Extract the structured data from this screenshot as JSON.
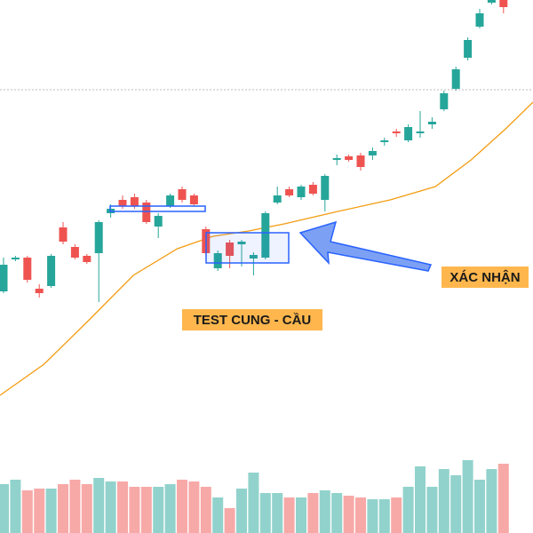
{
  "chart_data": {
    "type": "candlestick",
    "annotations": [
      "TEST CUNG - CẦU",
      "XÁC NHẬN"
    ],
    "open": [
      272,
      308,
      310,
      275,
      278,
      344,
      322,
      312,
      315,
      360,
      375,
      378,
      372,
      345,
      368,
      387,
      380,
      342,
      298,
      327,
      325,
      309,
      310,
      372,
      387,
      378,
      392,
      375,
      420,
      424,
      425,
      425,
      440,
      452,
      442,
      450,
      460,
      477,
      500,
      535,
      570,
      597,
      600
    ],
    "high": [
      310,
      312,
      312,
      280,
      314,
      350,
      325,
      314,
      352,
      370,
      380,
      382,
      375,
      360,
      382,
      390,
      382,
      345,
      318,
      330,
      330,
      316,
      362,
      390,
      390,
      392,
      395,
      404,
      426,
      426,
      428,
      434,
      445,
      455,
      460,
      475,
      468,
      498,
      525,
      558,
      590,
      600,
      600
    ],
    "low": [
      270,
      306,
      282,
      265,
      276,
      325,
      308,
      303,
      260,
      355,
      365,
      365,
      348,
      332,
      366,
      372,
      368,
      312,
      295,
      298,
      300,
      290,
      308,
      370,
      378,
      375,
      380,
      362,
      414,
      418,
      408,
      420,
      436,
      446,
      440,
      445,
      455,
      475,
      498,
      532,
      568,
      595,
      585
    ],
    "close": [
      302,
      310,
      285,
      270,
      312,
      328,
      310,
      305,
      350,
      365,
      368,
      368,
      350,
      357,
      380,
      375,
      370,
      315,
      315,
      312,
      328,
      313,
      360,
      380,
      380,
      390,
      382,
      402,
      422,
      420,
      412,
      430,
      442,
      450,
      457,
      452,
      463,
      495,
      522,
      555,
      585,
      600,
      592
    ],
    "volume": [
      55,
      60,
      48,
      50,
      50,
      55,
      60,
      55,
      62,
      58,
      58,
      52,
      52,
      52,
      55,
      60,
      58,
      52,
      40,
      28,
      50,
      68,
      45,
      45,
      40,
      40,
      45,
      48,
      45,
      42,
      40,
      38,
      38,
      40,
      52,
      75,
      52,
      72,
      65,
      82,
      60,
      72,
      78
    ],
    "up_color": "#26a69a",
    "down_color": "#ef5350",
    "ylim": [
      0,
      600
    ],
    "volume_lim": [
      0,
      600
    ],
    "reference_line": 499,
    "moving_average": {
      "color": "#f39c12",
      "x": [
        -0.3,
        3.4,
        7.2,
        10.9,
        14.6,
        17.6,
        20.6,
        23.6,
        28.1,
        32.5,
        36.3,
        39.3,
        42.2,
        44.5
      ],
      "values": [
        155,
        190,
        240,
        290,
        320,
        334,
        340,
        348,
        362,
        375,
        390,
        420,
        455,
        485
      ]
    },
    "xlim": [
      -0.3,
      44.5
    ]
  }
}
